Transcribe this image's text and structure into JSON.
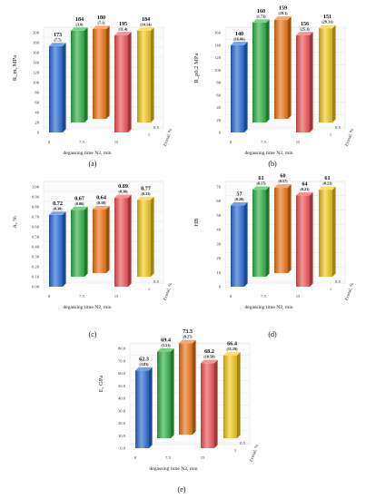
{
  "colors": {
    "blue": "#2E6FD9",
    "green": "#33B54A",
    "orange": "#F2791A",
    "red": "#F2575A",
    "yellow": "#F5CC1F"
  },
  "chart_data": [
    {
      "type": "bar",
      "panel_label": "(a)",
      "ylabel": "R_m, MPa",
      "xlabel": "degassing time N2, min",
      "zlabel": "Ecosal, %",
      "x_ticks": [
        "0",
        "7.5",
        "15"
      ],
      "z_ticks": [
        "0.5",
        "1"
      ],
      "y_ticks": [
        "0",
        "20",
        "40",
        "60",
        "80",
        "100",
        "120",
        "140",
        "160",
        "180",
        "200"
      ],
      "ylim": [
        0,
        200
      ],
      "bars": [
        {
          "degassing_time": "0",
          "ecosal": "0",
          "value": 173,
          "value_label": "173",
          "std_label": "(7.7)"
        },
        {
          "degassing_time": "7.5",
          "ecosal": "0.5",
          "value": 184,
          "value_label": "184",
          "std_label": "(3.8)"
        },
        {
          "degassing_time": "7.5",
          "ecosal": "1",
          "value": 180,
          "value_label": "180",
          "std_label": "(7.1)"
        },
        {
          "degassing_time": "15",
          "ecosal": "1",
          "value": 195,
          "value_label": "195",
          "std_label": "(11.4)"
        },
        {
          "degassing_time": "15",
          "ecosal": "0.5",
          "value": 184,
          "value_label": "184",
          "std_label": "(10.14)"
        }
      ]
    },
    {
      "type": "bar",
      "panel_label": "(b)",
      "ylabel": "R_p0.2 MPa",
      "xlabel": "degassing time N2, min",
      "zlabel": "Ecosal, %",
      "x_ticks": [
        "0",
        "7.5",
        "15"
      ],
      "z_ticks": [
        "0.5",
        "1"
      ],
      "y_ticks": [
        "0",
        "20",
        "40",
        "60",
        "80",
        "100",
        "120",
        "140",
        "160"
      ],
      "ylim": [
        0,
        160
      ],
      "bars": [
        {
          "value": 140,
          "value_label": "140",
          "std_label": "(16.06)"
        },
        {
          "value": 160,
          "value_label": "160",
          "std_label": "(1.73)"
        },
        {
          "value": 159,
          "value_label": "159",
          "std_label": "(19.1)"
        },
        {
          "value": 156,
          "value_label": "156",
          "std_label": "(25.1)"
        },
        {
          "value": 151,
          "value_label": "151",
          "std_label": "(29.31)"
        }
      ]
    },
    {
      "type": "bar",
      "panel_label": "(c)",
      "ylabel": "A, %",
      "xlabel": "degassing time N2, min",
      "zlabel": "Ecosal, %",
      "x_ticks": [
        "0",
        "7.5",
        "15"
      ],
      "z_ticks": [
        "0.5",
        "1"
      ],
      "y_ticks": [
        "0.00",
        "0.10",
        "0.20",
        "0.30",
        "0.40",
        "0.50",
        "0.60",
        "0.70",
        "0.80",
        "0.90",
        "1.00"
      ],
      "ylim": [
        0,
        1
      ],
      "bars": [
        {
          "value": 0.72,
          "value_label": "0.72",
          "std_label": "(0.30)"
        },
        {
          "value": 0.67,
          "value_label": "0.67",
          "std_label": "(0.06)"
        },
        {
          "value": 0.64,
          "value_label": "0.64",
          "std_label": "(0.10)"
        },
        {
          "value": 0.89,
          "value_label": "0.89",
          "std_label": "(0.30)"
        },
        {
          "value": 0.77,
          "value_label": "0.77",
          "std_label": "(0.33)"
        }
      ]
    },
    {
      "type": "bar",
      "panel_label": "(d)",
      "ylabel": "HB",
      "xlabel": "degassing time N2, min",
      "zlabel": "Ecosal, %",
      "x_ticks": [
        "0",
        "7.5",
        "15"
      ],
      "z_ticks": [
        "0.5",
        "1"
      ],
      "y_ticks": [
        "0",
        "10",
        "20",
        "30",
        "40",
        "50",
        "60",
        "70"
      ],
      "ylim": [
        0,
        70
      ],
      "bars": [
        {
          "value": 57,
          "value_label": "57",
          "std_label": "(0.20)"
        },
        {
          "value": 61,
          "value_label": "61",
          "std_label": "(0.17)"
        },
        {
          "value": 60,
          "value_label": "60",
          "std_label": "(0.57)"
        },
        {
          "value": 64,
          "value_label": "64",
          "std_label": "(0.21)"
        },
        {
          "value": 61,
          "value_label": "61",
          "std_label": "(0.21)"
        }
      ]
    },
    {
      "type": "bar",
      "panel_label": "(e)",
      "ylabel": "E, GPa",
      "xlabel": "degassing time N2, min",
      "zlabel": "Ecosal, %",
      "x_ticks": [
        "0",
        "7.5",
        "15"
      ],
      "z_ticks": [
        "0.5",
        "1"
      ],
      "y_ticks": [
        "0.0",
        "10.0",
        "20.0",
        "30.0",
        "40.0",
        "50.0",
        "60.0",
        "70.0",
        "80.0"
      ],
      "ylim": [
        0,
        80
      ],
      "bars": [
        {
          "value": 62.3,
          "value_label": "62.3",
          "std_label": "(3.83)"
        },
        {
          "value": 69.4,
          "value_label": "69.4",
          "std_label": "(3.51)"
        },
        {
          "value": 73.3,
          "value_label": "73.3",
          "std_label": "(9.27)"
        },
        {
          "value": 68.2,
          "value_label": "68.2",
          "std_label": "(10.58)"
        },
        {
          "value": 66.4,
          "value_label": "66.4",
          "std_label": "(11.19)"
        }
      ]
    }
  ]
}
